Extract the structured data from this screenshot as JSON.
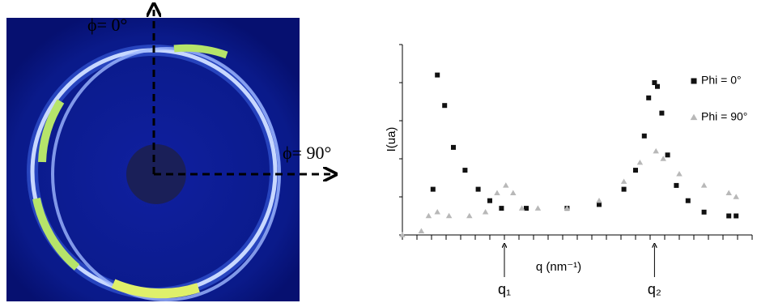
{
  "image": {
    "phi0_label": "ϕ= 0°",
    "phi90_label": "ϕ= 90°"
  },
  "chart_data": {
    "type": "scatter",
    "y_label": "I(ua)",
    "x_label": "q (nm⁻¹)",
    "xlim": [
      0,
      24
    ],
    "ylim": [
      0,
      5
    ],
    "xticks": [
      0,
      1,
      2,
      3,
      4,
      5,
      6,
      7,
      8,
      9,
      10,
      11,
      12,
      13,
      14,
      15,
      16,
      17,
      18,
      19,
      20,
      21,
      22,
      23,
      24
    ],
    "yticks": [
      0,
      1,
      2,
      3,
      4,
      5
    ],
    "series": [
      {
        "name": "Phi = 0°",
        "color": "#111111",
        "marker": "square",
        "x": [
          2.1,
          2.4,
          2.9,
          3.5,
          4.3,
          5.2,
          6.0,
          6.8,
          8.5,
          11.3,
          13.5,
          15.2,
          16.0,
          16.6,
          16.9,
          17.3,
          17.5,
          17.8,
          18.2,
          18.8,
          19.6,
          20.7,
          22.4,
          22.9
        ],
        "values": [
          1.2,
          4.2,
          3.4,
          2.3,
          1.7,
          1.2,
          0.9,
          0.7,
          0.7,
          0.7,
          0.8,
          1.2,
          1.7,
          2.6,
          3.6,
          4.0,
          3.9,
          3.2,
          2.1,
          1.3,
          0.9,
          0.6,
          0.5,
          0.5
        ]
      },
      {
        "name": "Phi = 90°",
        "color": "#b8b8b8",
        "marker": "triangle",
        "x": [
          0,
          1.3,
          1.8,
          2.4,
          3.2,
          4.6,
          5.7,
          6.5,
          7.1,
          7.6,
          8.2,
          9.3,
          11.3,
          13.5,
          15.2,
          16.3,
          17.4,
          17.9,
          19.0,
          20.7,
          22.4,
          22.9
        ],
        "values": [
          0,
          0.1,
          0.5,
          0.6,
          0.5,
          0.5,
          0.6,
          1.1,
          1.3,
          1.1,
          0.7,
          0.7,
          0.7,
          0.9,
          1.4,
          1.9,
          2.2,
          2.0,
          1.6,
          1.3,
          1.1,
          1.0
        ]
      }
    ],
    "annotations": [
      {
        "text": "q₁",
        "x": 7.0
      },
      {
        "text": "q₂",
        "x": 17.3
      }
    ]
  }
}
